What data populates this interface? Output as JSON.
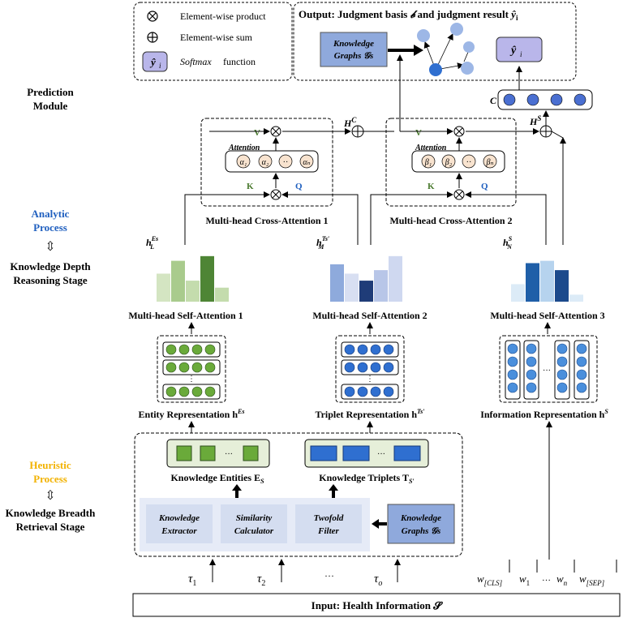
{
  "legend": {
    "product": "Element-wise product",
    "sum": "Element-wise sum",
    "softmax_symbol": "ŷ",
    "softmax_sub": "i",
    "softmax_fn": "Softmax",
    "softmax_word": "function"
  },
  "output": {
    "title_prefix": "Output: Judgment basis",
    "b_symbol": "𝒷",
    "title_mid": "and judgment result",
    "y_symbol": "ŷ",
    "y_sub": "i",
    "kg_line1": "Knowledge",
    "kg_line2": "Graphs 𝒢s"
  },
  "stages": {
    "prediction_1": "Prediction",
    "prediction_2": "Module",
    "analytic_1": "Analytic",
    "analytic_2": "Process",
    "depth_1": "Knowledge Depth",
    "depth_2": "Reasoning Stage",
    "heuristic_1": "Heuristic",
    "heuristic_2": "Process",
    "breadth_1": "Knowledge Breadth",
    "breadth_2": "Retrieval Stage",
    "swap_glyph": "⇳"
  },
  "colors": {
    "analytic": "#1f5fbf",
    "heuristic": "#f2b200",
    "green_dark": "#4a7a2f",
    "green_fill": "#6aaa3a",
    "blue_node": "#2f6fd0",
    "kg_fill": "#8fa9dc",
    "pale_blue_panel": "#e6ebf7"
  },
  "prediction": {
    "c_label": "C",
    "softmax_symbol": "ŷ",
    "softmax_sub": "i"
  },
  "cross_attention": [
    {
      "title": "Multi-head Cross-Attention 1",
      "v": "V",
      "k": "K",
      "q": "Q",
      "attention": "Attention",
      "weights": [
        "α₁",
        "α₂",
        "··",
        "αₙ"
      ],
      "h_label": "H",
      "h_sup": "C"
    },
    {
      "title": "Multi-head Cross-Attention 2",
      "v": "V",
      "k": "K",
      "q": "Q",
      "attention": "Attention",
      "weights": [
        "β₁",
        "β₂",
        "··",
        "βₙ"
      ],
      "h_label": "H",
      "h_sup": "S"
    }
  ],
  "self_attention": [
    {
      "title": "Multi-head Self-Attention 1",
      "h": "h",
      "h_sup": "Es",
      "h_sub": "L",
      "bars": [
        0.48,
        0.7,
        0.36,
        0.78,
        0.24
      ],
      "bar_colors": [
        "#d4e5c2",
        "#a9cb8d",
        "#c4dcad",
        "#4e8535",
        "#c4dcad"
      ]
    },
    {
      "title": "Multi-head Self-Attention 2",
      "h": "h",
      "h_sup": "Ts′",
      "h_sub": "M",
      "bars": [
        0.64,
        0.48,
        0.36,
        0.54,
        0.78
      ],
      "bar_colors": [
        "#8eaadc",
        "#d8dff2",
        "#1f3c78",
        "#b8c6e8",
        "#cfd8f0"
      ]
    },
    {
      "title": "Multi-head Self-Attention 3",
      "h": "h",
      "h_sup": "S",
      "h_sub": "N",
      "bars": [
        0.3,
        0.66,
        0.7,
        0.54,
        0.12
      ],
      "bar_colors": [
        "#dcebf7",
        "#1f5fa8",
        "#b6d3ee",
        "#1c4a8c",
        "#dcebf7"
      ]
    }
  ],
  "representations": {
    "entity": "Entity Representation h",
    "entity_sup": "Es",
    "triplet": "Triplet Representation h",
    "triplet_sup": "Ts′",
    "information": "Information Representation h",
    "information_sup": "S",
    "ellipsis": "⋮",
    "h_ellipsis": "···"
  },
  "retrieval": {
    "entities_label": "Knowledge Entities E",
    "entities_sub": "S",
    "triplets_label": "Knowledge Triplets T",
    "triplets_sub": "S′",
    "ellipsis": "···",
    "extractor_1": "Knowledge",
    "extractor_2": "Extractor",
    "similarity_1": "Similarity",
    "similarity_2": "Calculator",
    "filter_1": "Twofold",
    "filter_2": "Filter",
    "kg_1": "Knowledge",
    "kg_2": "Graphs 𝒢s"
  },
  "tokens": {
    "tau": "τ",
    "tau_subs": [
      "1",
      "2",
      "o"
    ],
    "tau_ellipsis": "···",
    "w": "w",
    "w_subs": [
      "[CLS]",
      "1",
      "n",
      "[SEP]"
    ],
    "w_ellipsis": "…"
  },
  "input": {
    "label": "Input: Health Information 𝓢"
  }
}
